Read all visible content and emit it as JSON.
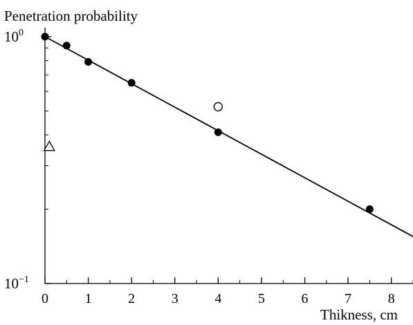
{
  "chart_data": {
    "type": "scatter",
    "title": "",
    "ylabel": "Penetration probability",
    "xlabel": "Thikness, cm",
    "xlim": [
      0,
      8.5
    ],
    "ylim": [
      0.1,
      1.0
    ],
    "y_scale": "log",
    "grid": false,
    "x_ticks": [
      "0",
      "1",
      "2",
      "3",
      "4",
      "5",
      "6",
      "7",
      "8"
    ],
    "y_ticks": [
      {
        "base": "10",
        "exp": "0",
        "value": 1.0
      },
      {
        "base": "10",
        "exp": "−1",
        "value": 0.1
      }
    ],
    "series": [
      {
        "marker": "filled-circle",
        "color": "#000000",
        "x": [
          0,
          0.5,
          1,
          2,
          4,
          7.5
        ],
        "y": [
          1.0,
          0.92,
          0.79,
          0.65,
          0.41,
          0.2
        ]
      },
      {
        "marker": "open-circle",
        "color": "#000000",
        "x": [
          4
        ],
        "y": [
          0.52
        ]
      },
      {
        "marker": "open-triangle",
        "color": "#000000",
        "x": [
          0.1
        ],
        "y": [
          0.36
        ]
      }
    ],
    "fit_line": {
      "style": "solid",
      "x": [
        0,
        8.5
      ],
      "y": [
        1.0,
        0.155
      ]
    }
  }
}
